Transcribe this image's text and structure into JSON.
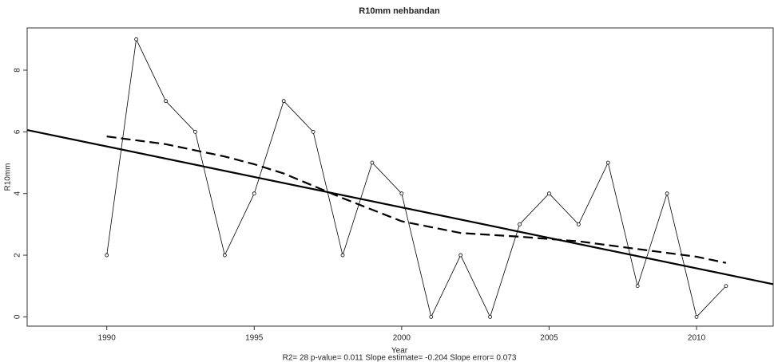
{
  "chart_data": {
    "type": "line",
    "title": "R10mm   nehbandan",
    "x_label": "Year",
    "y_label": "R10mm",
    "subtitle": "R2= 28  p-value= 0.011  Slope estimate= -0.204  Slope error= 0.073",
    "xlim": [
      1987.3,
      2012.6
    ],
    "ylim": [
      -0.3,
      9.37
    ],
    "xticks": [
      1990,
      1995,
      2000,
      2005,
      2010
    ],
    "yticks": [
      0,
      2,
      4,
      6,
      8
    ],
    "series": [
      {
        "name": "observed",
        "color": "#000000",
        "line_style": "solid",
        "line_width": 0.8,
        "markers": true,
        "x": [
          1990,
          1991,
          1992,
          1993,
          1994,
          1995,
          1996,
          1997,
          1998,
          1999,
          2000,
          2001,
          2002,
          2003,
          2004,
          2005,
          2006,
          2007,
          2008,
          2009,
          2010,
          2011
        ],
        "values": [
          2,
          9,
          7,
          6,
          2,
          4,
          7,
          6,
          2,
          5,
          4,
          0,
          2,
          0,
          3,
          4,
          3,
          5,
          1,
          4,
          0,
          1
        ]
      },
      {
        "name": "trend",
        "color": "#000000",
        "line_style": "solid",
        "line_width": 2.2,
        "markers": false,
        "x": [
          1987.3,
          2012.6
        ],
        "values": [
          6.06,
          1.06
        ]
      },
      {
        "name": "lowess",
        "color": "#000000",
        "line_style": "dashed",
        "line_width": 2.2,
        "markers": false,
        "x": [
          1990,
          1992,
          1994,
          1995,
          1996,
          1997,
          1998,
          2000,
          2002,
          2004,
          2006,
          2008,
          2010,
          2011
        ],
        "values": [
          5.85,
          5.6,
          5.2,
          4.95,
          4.65,
          4.25,
          3.85,
          3.1,
          2.72,
          2.6,
          2.45,
          2.2,
          1.95,
          1.75
        ]
      }
    ]
  }
}
